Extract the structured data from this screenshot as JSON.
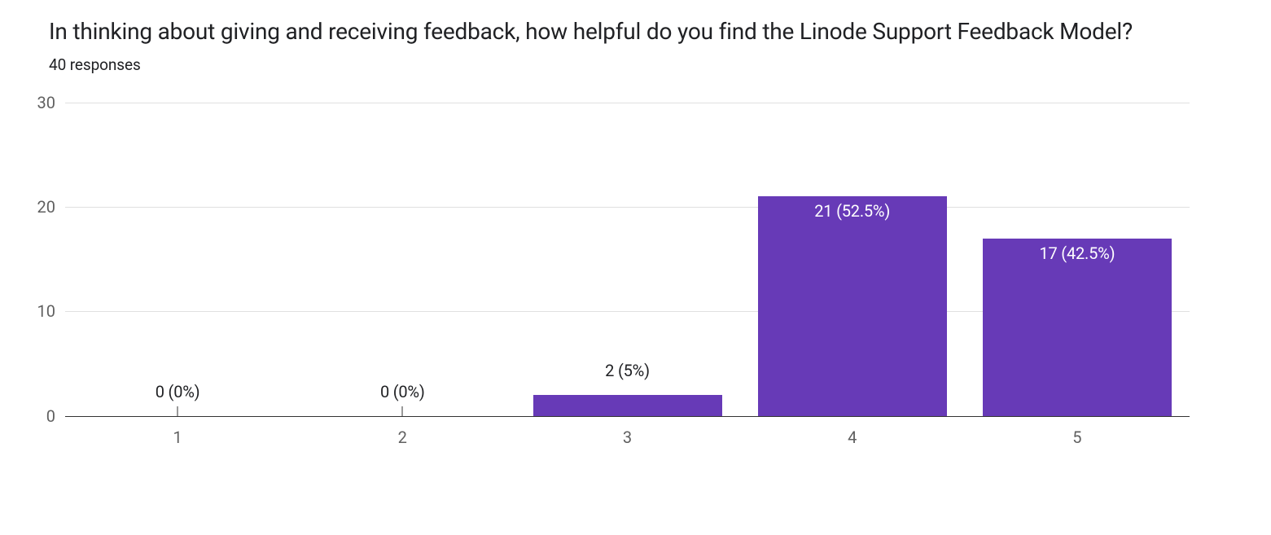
{
  "title": "In thinking about giving and receiving feedback, how helpful do you find the Linode Support Feedback Model?",
  "subtitle": "40 responses",
  "chart": {
    "type": "bar",
    "categories": [
      "1",
      "2",
      "3",
      "4",
      "5"
    ],
    "values": [
      0,
      0,
      2,
      21,
      17
    ],
    "percents": [
      "0%",
      "0%",
      "5%",
      "52.5%",
      "42.5%"
    ],
    "bar_labels": [
      "0 (0%)",
      "0 (0%)",
      "2 (5%)",
      "21 (52.5%)",
      "17 (42.5%)"
    ],
    "label_positions": [
      "above",
      "above",
      "above",
      "inside",
      "inside"
    ],
    "bar_color": "#673ab7",
    "ylim": [
      0,
      30
    ],
    "ytick_step": 10,
    "yticks": [
      0,
      10,
      20,
      30
    ],
    "grid_color": "#e0e0e0",
    "baseline_color": "#333333",
    "background_color": "#ffffff",
    "bar_width_pct": 84,
    "title_fontsize": 28,
    "subtitle_fontsize": 19,
    "axis_label_fontsize": 20,
    "value_label_fontsize": 20,
    "zero_bar_tick_height": 12
  }
}
